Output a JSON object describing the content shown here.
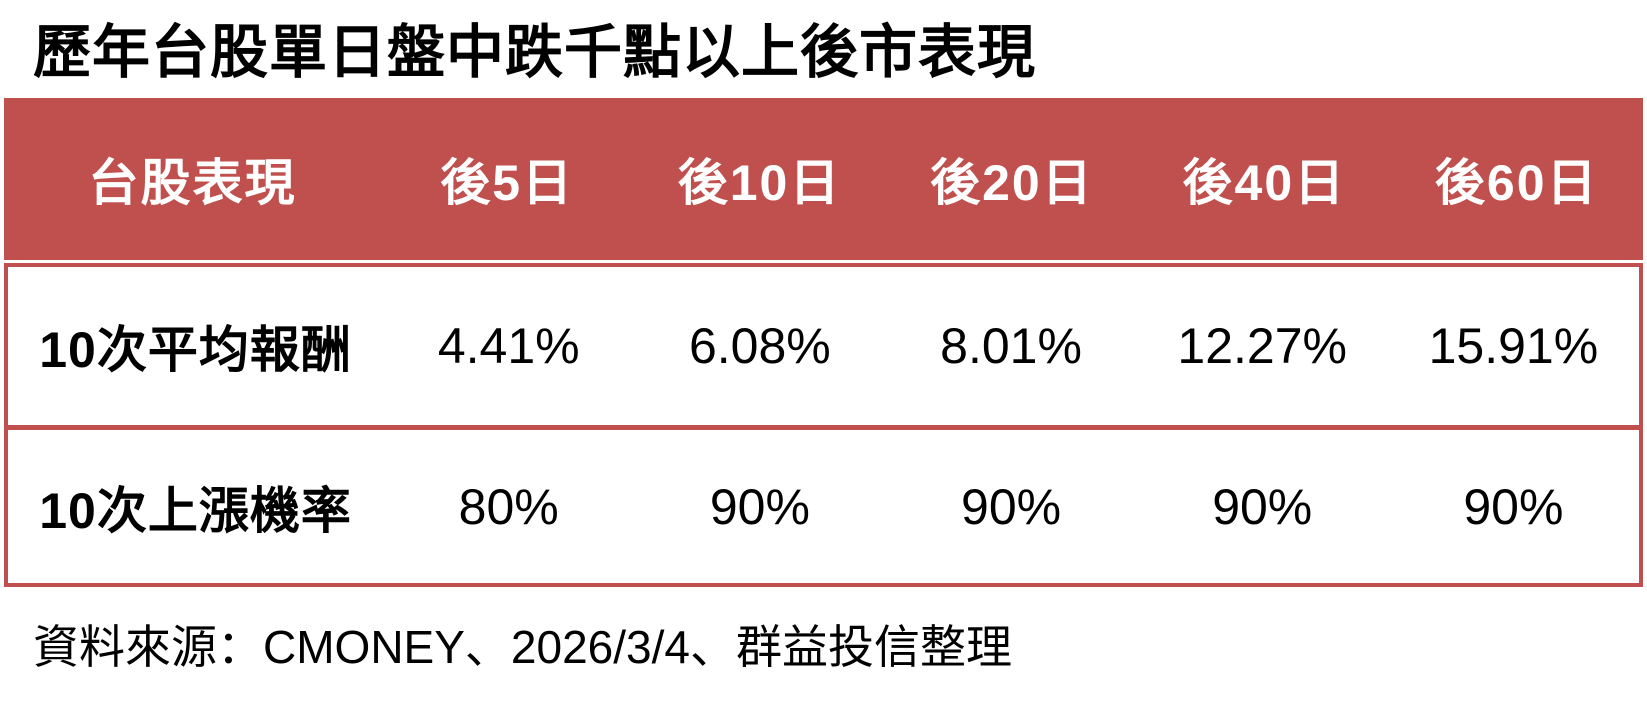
{
  "title": "歷年台股單日盤中跌千點以上後市表現",
  "colors": {
    "accent": "#C0504D",
    "header_text": "#FFFFFF",
    "body_text": "#000000",
    "page_bg": "#FFFFFF"
  },
  "chart_data": {
    "type": "table",
    "title": "歷年台股單日盤中跌千點以上後市表現",
    "columns": [
      "台股表現",
      "後5日",
      "後10日",
      "後20日",
      "後40日",
      "後60日"
    ],
    "rows": [
      {
        "label": "10次平均報酬",
        "values": [
          "4.41%",
          "6.08%",
          "8.01%",
          "12.27%",
          "15.91%"
        ]
      },
      {
        "label": "10次上漲機率",
        "values": [
          "80%",
          "90%",
          "90%",
          "90%",
          "90%"
        ]
      }
    ],
    "source": "資料來源：CMONEY、2026/3/4、群益投信整理",
    "layout": {
      "header_background": "#C0504D",
      "body_border": "#C0504D",
      "grid": "horizontal-divider-only",
      "legend": "none"
    }
  }
}
